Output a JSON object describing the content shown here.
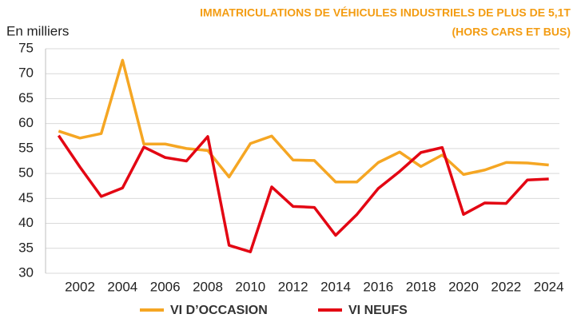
{
  "chart_data": {
    "type": "line",
    "title": [
      "IMMATRICULATIONS DE VÉHICULES INDUSTRIELS DE PLUS DE 5,1T",
      "(HORS CARS ET BUS)"
    ],
    "y_label": "En milliers",
    "categories": [
      null,
      "2002",
      null,
      "2004",
      null,
      "2006",
      null,
      "2008",
      null,
      "2010",
      null,
      "2012",
      null,
      "2014",
      null,
      "2016",
      null,
      "2018",
      null,
      "2020",
      null,
      "2022",
      null,
      "2024"
    ],
    "series": [
      {
        "name": "VI D’OCCASION",
        "color": "#f5a623",
        "values": [
          58.5,
          57.1,
          58,
          72.7,
          55.9,
          55.9,
          55,
          54.6,
          49.3,
          56,
          57.5,
          52.7,
          52.6,
          48.3,
          48.3,
          52.2,
          54.3,
          51.4,
          53.7,
          49.8,
          50.7,
          52.2,
          52.1,
          51.7
        ]
      },
      {
        "name": "VI NEUFS",
        "color": "#e30613",
        "values": [
          57.6,
          51.3,
          45.4,
          47.1,
          55.3,
          53.2,
          52.5,
          57.4,
          35.6,
          34.3,
          47.3,
          43.4,
          43.2,
          37.6,
          41.8,
          47,
          50.4,
          54.2,
          55.2,
          41.8,
          44.1,
          44,
          48.7,
          48.9
        ]
      }
    ],
    "ylim": [
      30,
      75
    ],
    "yticks": [
      30,
      35,
      40,
      45,
      50,
      55,
      60,
      65,
      70,
      75
    ],
    "grid": true,
    "legend": "bottom"
  }
}
